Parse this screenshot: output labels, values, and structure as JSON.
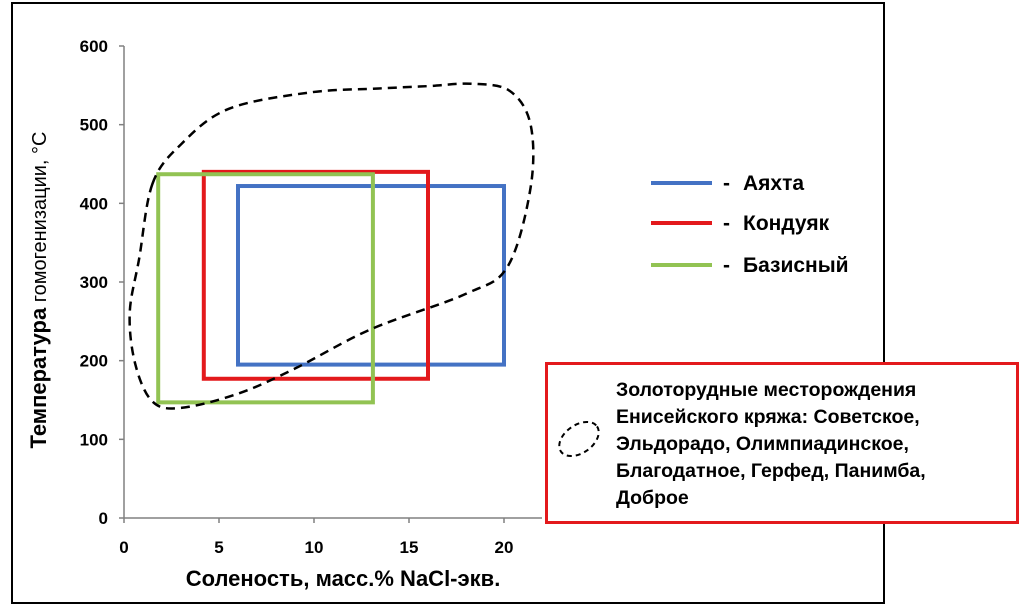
{
  "chart_data": {
    "type": "box-ranges",
    "xlabel": "Соленость, масс.% NaCl-экв.",
    "ylabel": "Температура гомогенизации, °С",
    "ylabel_parts": [
      "Температура",
      " гомогенизации, ",
      "°С"
    ],
    "xlim": [
      0,
      22
    ],
    "ylim": [
      0,
      600
    ],
    "xticks": [
      0,
      5,
      10,
      15,
      20
    ],
    "yticks": [
      0,
      100,
      200,
      300,
      400,
      500,
      600
    ],
    "series": [
      {
        "name": "Аяхта",
        "color": "#4472c4",
        "x": [
          6.0,
          20.0
        ],
        "y": [
          195,
          422
        ]
      },
      {
        "name": "Кондуяк",
        "color": "#e3191c",
        "x": [
          4.2,
          16.0
        ],
        "y": [
          177,
          440
        ]
      },
      {
        "name": "Базисный",
        "color": "#92c353",
        "x": [
          1.8,
          13.1
        ],
        "y": [
          147,
          437
        ]
      }
    ],
    "field_outline": {
      "style": "dashed",
      "points": [
        [
          1.5,
          425
        ],
        [
          3.0,
          475
        ],
        [
          5.5,
          520
        ],
        [
          9.8,
          541
        ],
        [
          13.4,
          546
        ],
        [
          16.0,
          549
        ],
        [
          18.3,
          552
        ],
        [
          20.3,
          543
        ],
        [
          21.4,
          500
        ],
        [
          21.4,
          420
        ],
        [
          20.2,
          320
        ],
        [
          18.0,
          285
        ],
        [
          13.0,
          240
        ],
        [
          9.0,
          190
        ],
        [
          6.0,
          158
        ],
        [
          3.0,
          140
        ],
        [
          1.5,
          148
        ],
        [
          0.6,
          195
        ],
        [
          0.3,
          260
        ],
        [
          0.8,
          330
        ],
        [
          1.5,
          425
        ]
      ]
    },
    "legend_position": "right",
    "dash_separator": "-"
  },
  "note": {
    "lines": [
      "Золоторудные месторождения",
      "Енисейского кряжа: Советское,",
      "Эльдорадо, Олимпиадинское,",
      "Благодатное, Герфед, Панимба,",
      "Доброе"
    ]
  }
}
